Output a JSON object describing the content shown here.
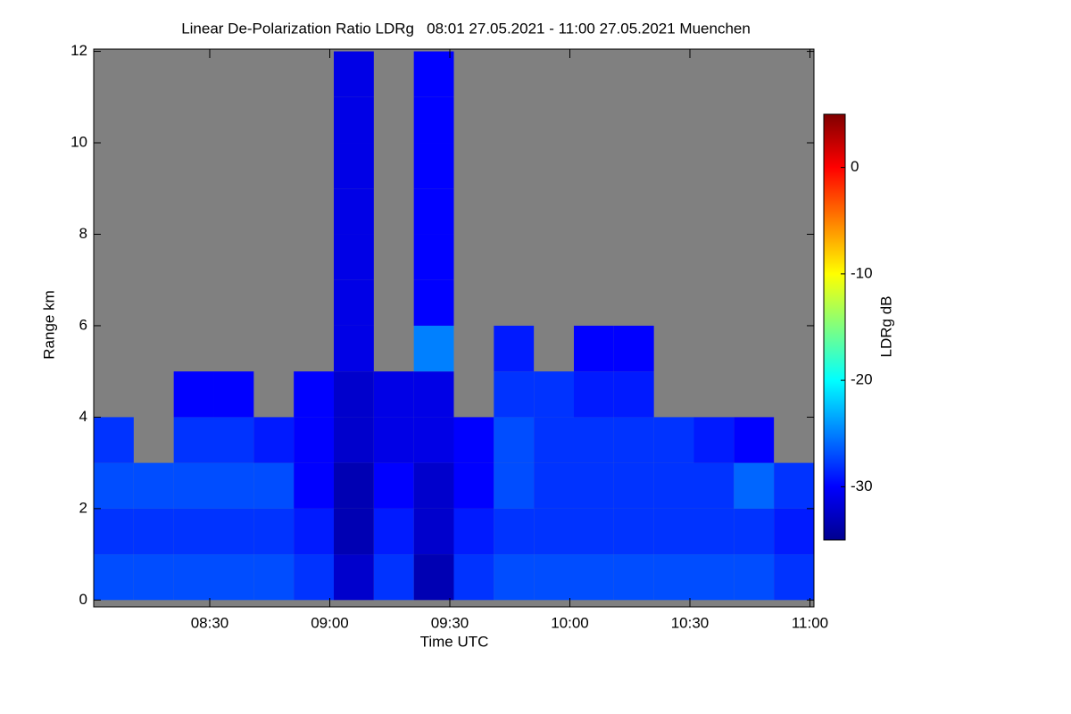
{
  "chart_data": {
    "type": "heatmap",
    "title": "Linear De-Polarization Ratio LDRg   08:01 27.05.2021 - 11:00 27.05.2021 Muenchen",
    "x_label": "Time UTC",
    "y_label": "Range km",
    "colorbar_label": "LDRg dB",
    "colormap": "jet",
    "missing_color": "#808080",
    "x": [
      8.1,
      8.2667,
      8.4333,
      8.6,
      8.7667,
      8.9333,
      9.1,
      9.2667,
      9.4333,
      9.6,
      9.7667,
      9.9333,
      10.1,
      10.2667,
      10.4333,
      10.6,
      10.7667,
      10.9333
    ],
    "y": [
      0.5,
      1.5,
      2.5,
      3.5,
      4.5,
      5.5,
      6.5,
      7.5,
      8.5,
      9.5,
      10.5,
      11.5
    ],
    "z": [
      [
        -27,
        -27,
        -27,
        -27,
        -27,
        -28,
        -32,
        -28,
        -33,
        -28,
        -27,
        -27,
        -27,
        -27,
        -27,
        -27,
        -27,
        -28
      ],
      [
        -28,
        -28,
        -28,
        -28,
        -28,
        -29,
        -33,
        -29,
        -32,
        -29,
        -28,
        -28,
        -28,
        -28,
        -28,
        -28,
        -28,
        -29
      ],
      [
        -27,
        -27,
        -27,
        -27,
        -27,
        -30,
        -33,
        -30,
        -32,
        -30,
        -27,
        -28,
        -28,
        -28,
        -28,
        -28,
        -26,
        -28
      ],
      [
        -28,
        null,
        -28,
        -28,
        -29,
        -30,
        -32,
        -31,
        -31,
        -30,
        -27,
        -28,
        -28,
        -28,
        -28,
        -29,
        -30,
        null
      ],
      [
        null,
        null,
        -30,
        -30,
        null,
        -30,
        -32,
        -31,
        -31,
        null,
        -28,
        -28,
        -29,
        -29,
        null,
        null,
        null,
        null
      ],
      [
        null,
        null,
        null,
        null,
        null,
        null,
        -31,
        null,
        -25,
        null,
        -29,
        null,
        -30,
        -30,
        null,
        null,
        null,
        null
      ],
      [
        null,
        null,
        null,
        null,
        null,
        null,
        -31,
        null,
        -30,
        null,
        null,
        null,
        null,
        null,
        null,
        null,
        null,
        null
      ],
      [
        null,
        null,
        null,
        null,
        null,
        null,
        -31,
        null,
        -30,
        null,
        null,
        null,
        null,
        null,
        null,
        null,
        null,
        null
      ],
      [
        null,
        null,
        null,
        null,
        null,
        null,
        -31,
        null,
        -30,
        null,
        null,
        null,
        null,
        null,
        null,
        null,
        null,
        null
      ],
      [
        null,
        null,
        null,
        null,
        null,
        null,
        -31,
        null,
        -30,
        null,
        null,
        null,
        null,
        null,
        null,
        null,
        null,
        null
      ],
      [
        null,
        null,
        null,
        null,
        null,
        null,
        -31,
        null,
        -30,
        null,
        null,
        null,
        null,
        null,
        null,
        null,
        null,
        null
      ],
      [
        null,
        null,
        null,
        null,
        null,
        null,
        -31,
        null,
        -30,
        null,
        null,
        null,
        null,
        null,
        null,
        null,
        null,
        null
      ]
    ],
    "xlim": [
      8.0167,
      11.0167
    ],
    "xticks": [
      {
        "value": 8.5,
        "label": "08:30"
      },
      {
        "value": 9,
        "label": "09:00"
      },
      {
        "value": 9.5,
        "label": "09:30"
      },
      {
        "value": 10,
        "label": "10:00"
      },
      {
        "value": 10.5,
        "label": "10:30"
      },
      {
        "value": 11,
        "label": "11:00"
      }
    ],
    "ylim": [
      -0.15,
      12.05
    ],
    "yticks": [
      0,
      2,
      4,
      6,
      8,
      10,
      12
    ],
    "clim": [
      -35,
      5
    ],
    "cticks": [
      0,
      -10,
      -20,
      -30
    ]
  }
}
